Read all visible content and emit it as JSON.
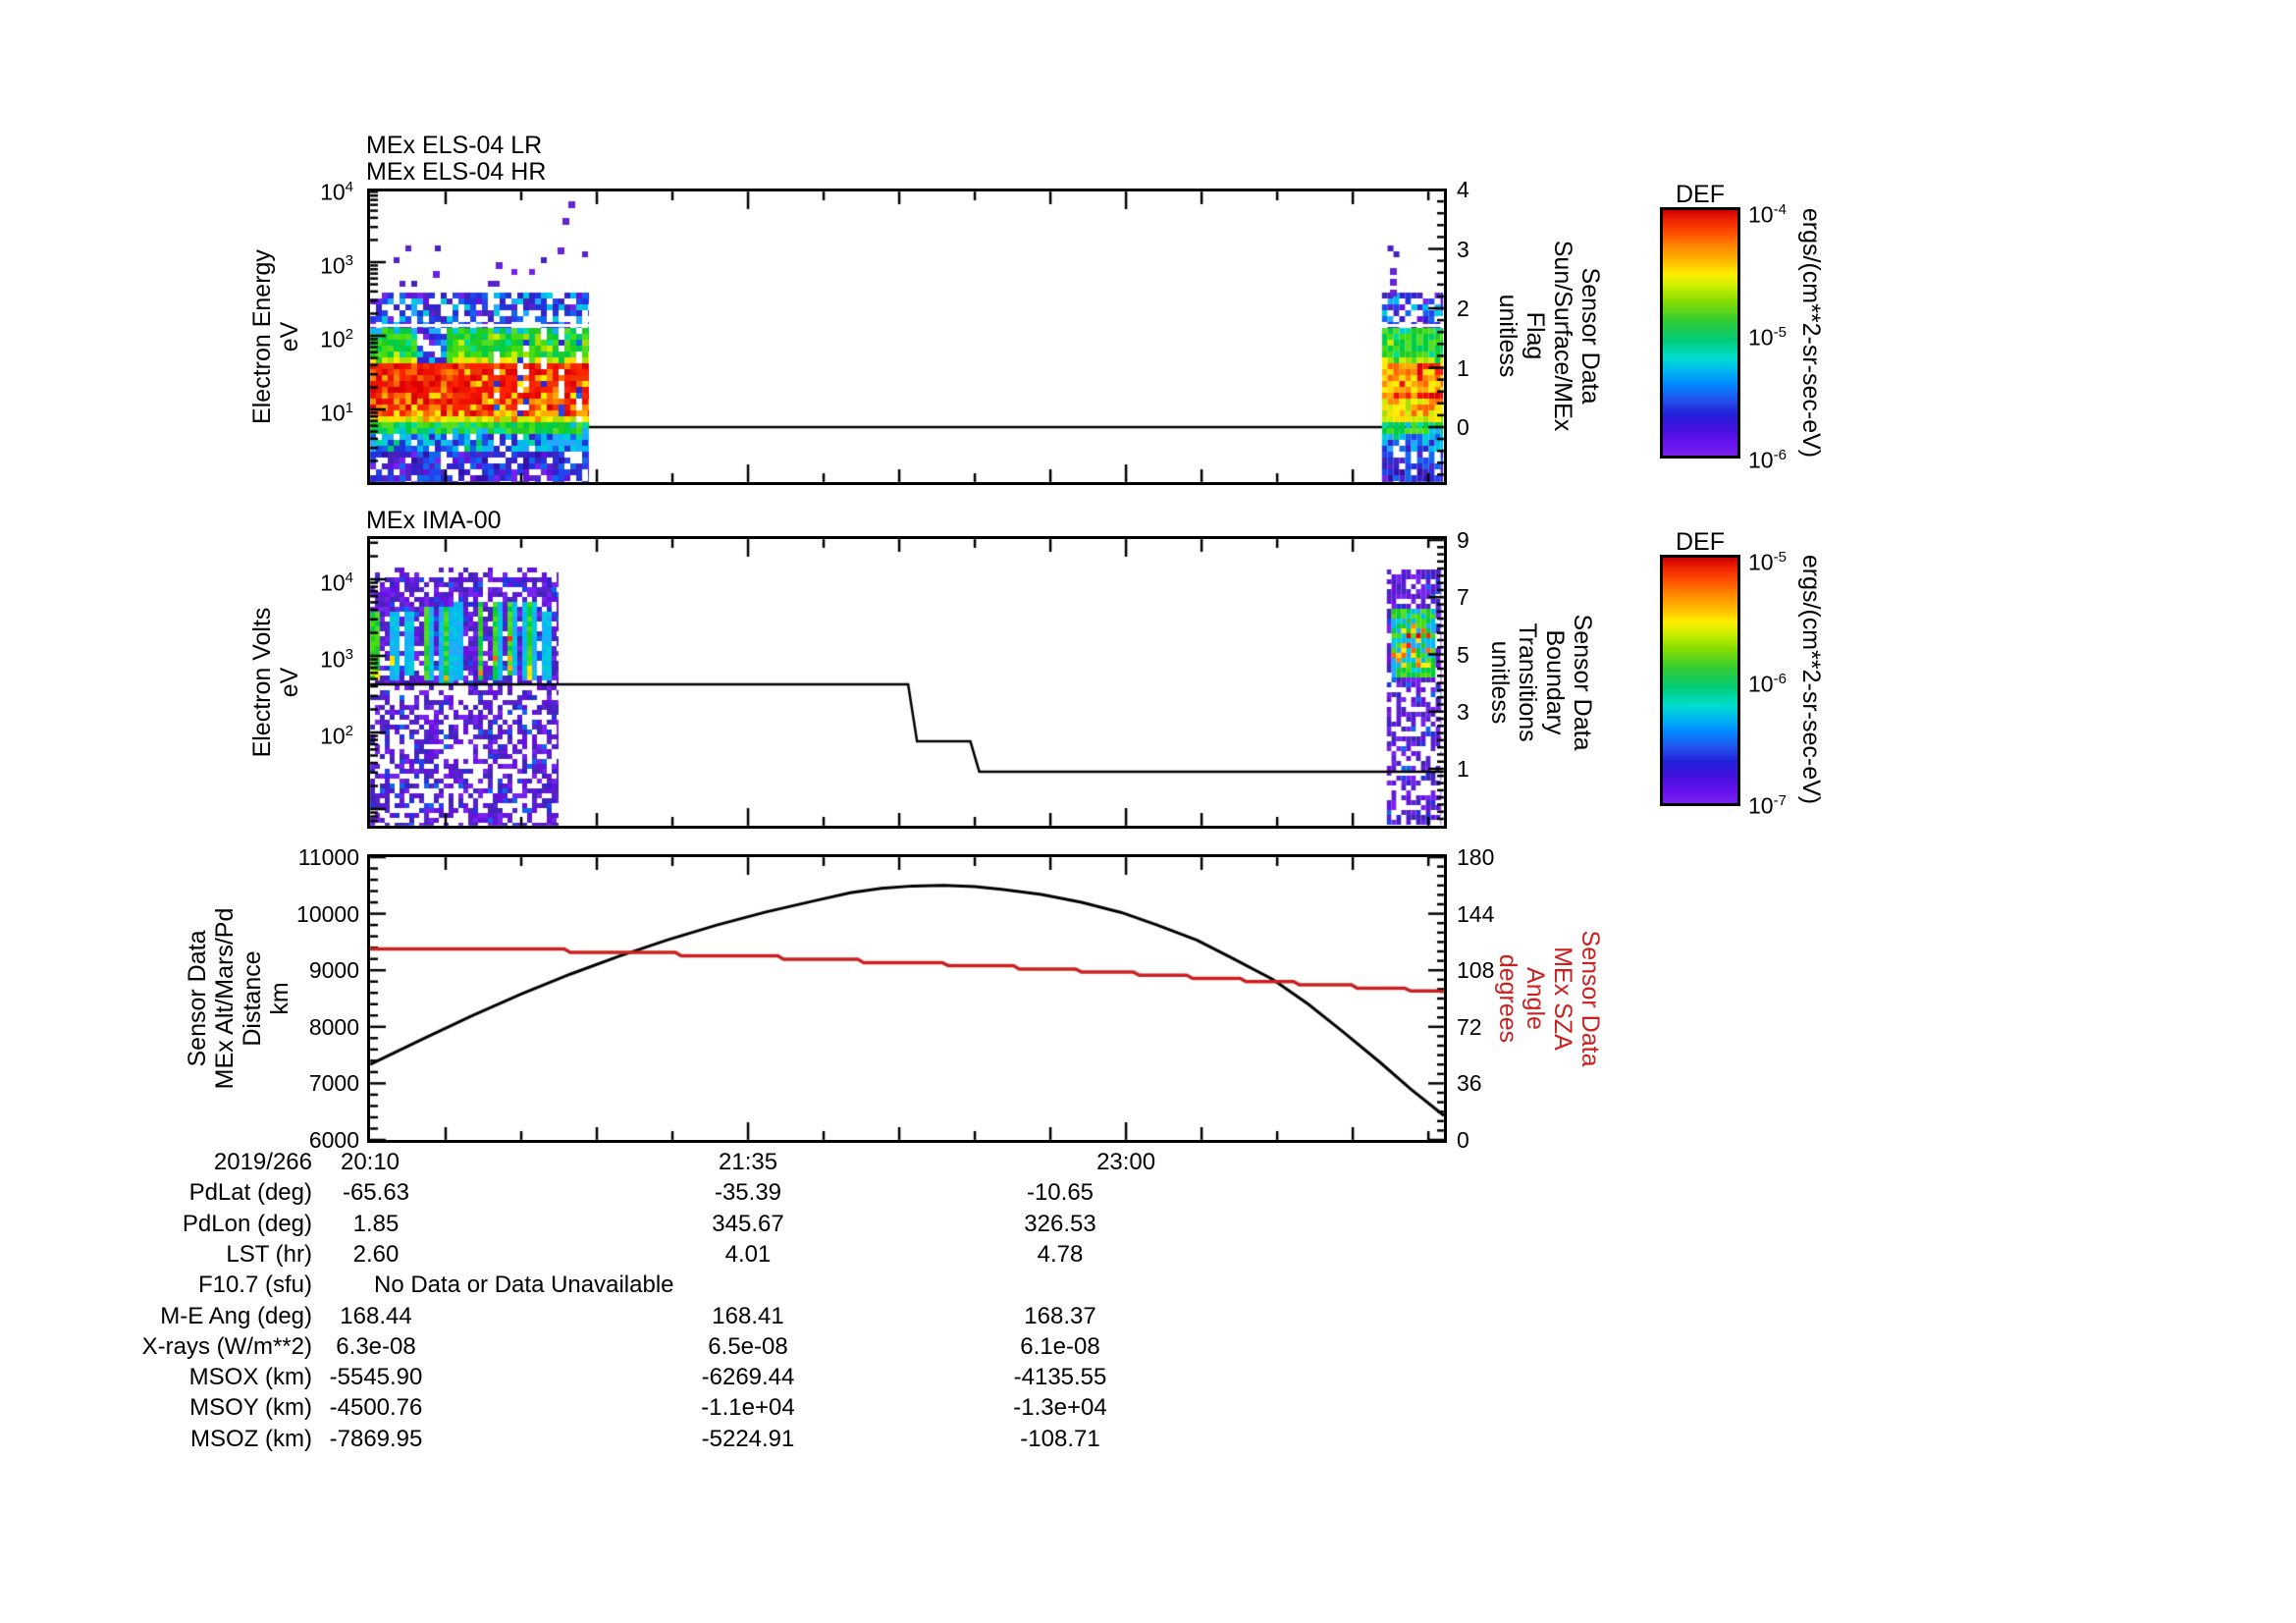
{
  "colors": {
    "accent_red": "#cc2020",
    "background": "#ffffff"
  },
  "panels": {
    "els": {
      "title_lines": [
        "MEx ELS-04 LR",
        "MEx ELS-04 HR"
      ],
      "left_axis": {
        "label": "Electron Energy\neV",
        "tick_exponents": [
          4,
          3,
          2,
          1
        ],
        "range_exponents": [
          0,
          4
        ]
      },
      "right_axis": {
        "label": "Sensor Data\nSun/Surface/MEx\nFlag\nunitless",
        "ticks": [
          4,
          3,
          2,
          1,
          0
        ],
        "range": [
          -1,
          5
        ]
      },
      "colorbar": {
        "title": "DEF",
        "tick_exponents": [
          -4,
          -5,
          -6
        ],
        "unit_label": "ergs/(cm**2-sr-sec-eV)"
      }
    },
    "ima": {
      "title_lines": [
        "MEx IMA-00"
      ],
      "left_axis": {
        "label": "Electron Volts\neV",
        "tick_exponents": [
          4,
          3,
          2
        ],
        "range_exponents": [
          0.8,
          4.5
        ]
      },
      "right_axis": {
        "label": "Sensor Data\nBoundary\nTransitions\nunitless",
        "ticks": [
          9,
          7,
          5,
          3,
          1
        ],
        "range": [
          -1,
          9
        ]
      },
      "colorbar": {
        "title": "DEF",
        "tick_exponents": [
          -5,
          -6,
          -7
        ],
        "unit_label": "ergs/(cm**2-sr-sec-eV)"
      }
    },
    "xy": {
      "left_axis": {
        "label": "Sensor Data\nMEx Alt/Mars/Pd\nDistance\nkm",
        "ticks": [
          11000,
          10000,
          9000,
          8000,
          7000,
          6000
        ],
        "range": [
          6000,
          11000
        ]
      },
      "right_axis": {
        "label": "Sensor Data\nMEx SZA\nAngle\ndegrees",
        "ticks": [
          180,
          144,
          108,
          72,
          36,
          0
        ],
        "range": [
          0,
          180
        ],
        "color": "#cc2020"
      },
      "x_axis": {
        "date_label": "2019/266",
        "tick_labels": [
          "20:10",
          "21:35",
          "23:00"
        ],
        "tick_minutes": [
          0,
          85,
          170
        ],
        "total_minutes": 241.5,
        "minor_step_minutes": 17
      }
    }
  },
  "chart_data": [
    {
      "type": "heatmap",
      "title": "MEx ELS-04 LR / MEx ELS-04 HR",
      "ylabel": "Electron Energy (eV)",
      "y_range": [
        1,
        10000
      ],
      "z_unit": "ergs/(cm**2-sr-sec-eV)",
      "z_range": [
        1e-06,
        0.0001
      ],
      "x_start": "2019/266 20:10",
      "coverage_minutes": [
        [
          0,
          49.2
        ],
        [
          227.5,
          241.3
        ]
      ],
      "description": "Intense red flux 1e-4 between ~10-100 eV, yellow/green to ~300 eV, blue-purple noise above 300 eV and below ~8 eV; trailing segment more orange/green"
    },
    {
      "type": "heatmap",
      "title": "MEx IMA-00",
      "ylabel": "Electron Volts (eV)",
      "y_range": [
        7,
        35000
      ],
      "z_unit": "ergs/(cm**2-sr-sec-eV)",
      "z_range": [
        1e-07,
        1e-05
      ],
      "coverage_minutes": [
        [
          0,
          42.4
        ],
        [
          228.6,
          240.9
        ]
      ],
      "description": "Periodic bright cyan/green vertical stripes with yellow-orange cores between ~500-5000 eV over sparse purple noise; red patches in trailing segment"
    },
    {
      "type": "line",
      "x_unit": "minutes after 2019/266 20:10",
      "series": [
        {
          "name": "MEx Alt/Mars/Pd Distance (km)",
          "axis": "xy-left",
          "color": "#000000",
          "points": [
            [
              0,
              7335
            ],
            [
              12,
              7790
            ],
            [
              23,
              8200
            ],
            [
              34,
              8580
            ],
            [
              45,
              8930
            ],
            [
              56,
              9250
            ],
            [
              67,
              9540
            ],
            [
              78,
              9800
            ],
            [
              89,
              10030
            ],
            [
              100,
              10230
            ],
            [
              108,
              10370
            ],
            [
              115,
              10450
            ],
            [
              122,
              10490
            ],
            [
              129,
              10500
            ],
            [
              136,
              10480
            ],
            [
              142,
              10430
            ],
            [
              151,
              10340
            ],
            [
              160,
              10200
            ],
            [
              169,
              10020
            ],
            [
              177,
              9800
            ],
            [
              186,
              9530
            ],
            [
              194,
              9210
            ],
            [
              203,
              8840
            ],
            [
              211,
              8400
            ],
            [
              219,
              7900
            ],
            [
              227,
              7380
            ],
            [
              234,
              6900
            ],
            [
              241.5,
              6430
            ]
          ]
        },
        {
          "name": "MEx SZA Angle (deg)",
          "axis": "xy-right",
          "color": "#cc2020",
          "step": true,
          "points": [
            [
              0,
              121.5
            ],
            [
              45,
              119.3
            ],
            [
              70,
              117.2
            ],
            [
              93,
              115.0
            ],
            [
              111,
              112.8
            ],
            [
              130,
              111.0
            ],
            [
              146,
              108.8
            ],
            [
              160,
              106.8
            ],
            [
              173,
              104.8
            ],
            [
              185,
              102.8
            ],
            [
              197,
              100.8
            ],
            [
              209,
              98.8
            ],
            [
              222,
              96.6
            ],
            [
              234,
              94.8
            ],
            [
              241.5,
              94.3
            ]
          ]
        },
        {
          "name": "Sun/Surface/MEx Flag (unitless)",
          "axis": "els-right",
          "color": "#000000",
          "points": [
            [
              49.2,
              0
            ],
            [
              241.3,
              0
            ]
          ]
        },
        {
          "name": "Boundary Transitions (unitless)",
          "axis": "ima-right",
          "color": "#000000",
          "points": [
            [
              0,
              3.95
            ],
            [
              121,
              3.95
            ],
            [
              123,
              1.96
            ],
            [
              135,
              1.96
            ],
            [
              137,
              0.9
            ],
            [
              241.5,
              0.9
            ]
          ]
        }
      ]
    }
  ],
  "table": {
    "times_row": {
      "label": "2019/266",
      "values": [
        "20:10",
        "21:35",
        "23:00"
      ]
    },
    "rows": [
      {
        "label": "PdLat (deg)",
        "values": [
          "-65.63",
          "-35.39",
          "-10.65"
        ]
      },
      {
        "label": "PdLon (deg)",
        "values": [
          "1.85",
          "345.67",
          "326.53"
        ]
      },
      {
        "label": "LST (hr)",
        "values": [
          "2.60",
          "4.01",
          "4.78"
        ]
      },
      {
        "label": "F10.7 (sfu)",
        "values": [],
        "span_text": "No Data or Data Unavailable"
      },
      {
        "label": "M-E Ang (deg)",
        "values": [
          "168.44",
          "168.41",
          "168.37"
        ]
      },
      {
        "label": "X-rays (W/m**2)",
        "values": [
          "6.3e-08",
          "6.5e-08",
          "6.1e-08"
        ]
      },
      {
        "label": "MSOX (km)",
        "values": [
          "-5545.90",
          "-6269.44",
          "-4135.55"
        ]
      },
      {
        "label": "MSOY (km)",
        "values": [
          "-4500.76",
          "-1.1e+04",
          "-1.3e+04"
        ]
      },
      {
        "label": "MSOZ (km)",
        "values": [
          "-7869.95",
          "-5224.91",
          "-108.71"
        ]
      }
    ]
  }
}
